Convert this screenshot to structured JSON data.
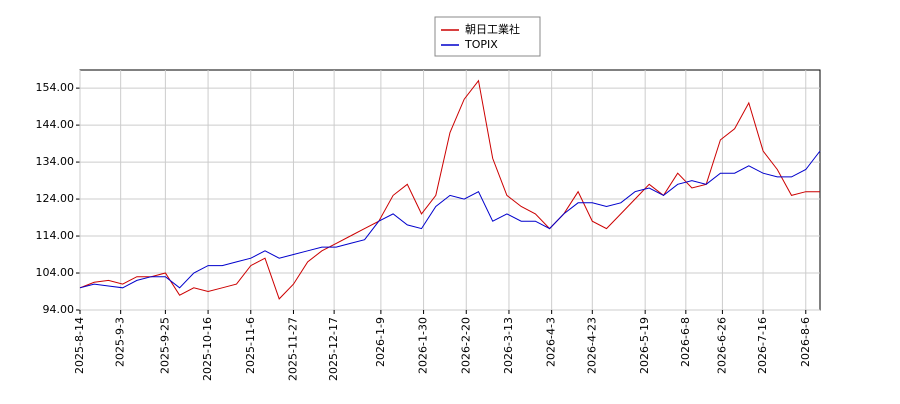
{
  "chart_data": {
    "type": "line",
    "x": [
      "2025-08-14",
      "2025-08-21",
      "2025-08-28",
      "2025-09-04",
      "2025-09-11",
      "2025-09-18",
      "2025-09-25",
      "2025-10-02",
      "2025-10-09",
      "2025-10-16",
      "2025-10-23",
      "2025-10-30",
      "2025-11-06",
      "2025-11-13",
      "2025-11-20",
      "2025-11-27",
      "2025-12-04",
      "2025-12-11",
      "2025-12-18",
      "2025-12-25",
      "2026-01-01",
      "2026-01-08",
      "2026-01-15",
      "2026-01-22",
      "2026-01-29",
      "2026-02-05",
      "2026-02-12",
      "2026-02-19",
      "2026-02-26",
      "2026-03-05",
      "2026-03-12",
      "2026-03-19",
      "2026-03-26",
      "2026-04-02",
      "2026-04-09",
      "2026-04-16",
      "2026-04-23",
      "2026-04-30",
      "2026-05-07",
      "2026-05-14",
      "2026-05-21",
      "2026-05-28",
      "2026-06-04",
      "2026-06-11",
      "2026-06-18",
      "2026-06-25",
      "2026-07-02",
      "2026-07-09",
      "2026-07-16",
      "2026-07-23",
      "2026-07-30",
      "2026-08-06",
      "2026-08-13"
    ],
    "series": [
      {
        "name": "朝日工業社",
        "color": "#cc0000",
        "values": [
          100,
          101.5,
          102,
          101,
          103,
          103,
          104,
          98,
          100,
          99,
          100,
          101,
          106,
          108,
          97,
          101,
          107,
          110,
          112,
          114,
          116,
          118,
          125,
          128,
          120,
          125,
          142,
          151,
          156,
          135,
          125,
          122,
          120,
          116,
          120,
          126,
          118,
          116,
          120,
          124,
          128,
          125,
          131,
          127,
          128,
          140,
          143,
          150,
          137,
          132,
          125,
          126,
          126
        ]
      },
      {
        "name": "TOPIX",
        "color": "#0000cc",
        "values": [
          100,
          101,
          100.5,
          100,
          102,
          103,
          103,
          100,
          104,
          106,
          106,
          107,
          108,
          110,
          108,
          109,
          110,
          111,
          111,
          112,
          113,
          118,
          120,
          117,
          116,
          122,
          125,
          124,
          126,
          118,
          120,
          118,
          118,
          116,
          120,
          123,
          123,
          122,
          123,
          126,
          127,
          125,
          128,
          129,
          128,
          131,
          131,
          133,
          131,
          130,
          130,
          132,
          137
        ]
      }
    ],
    "xlim": [
      "2025-08-14",
      "2026-08-13"
    ],
    "xticks": [
      "2025-8-14",
      "2025-9-3",
      "2025-9-25",
      "2025-10-16",
      "2025-11-6",
      "2025-11-27",
      "2025-12-17",
      "2026-1-9",
      "2026-1-30",
      "2026-2-20",
      "2026-3-13",
      "2026-4-3",
      "2026-4-23",
      "2026-5-19",
      "2026-6-8",
      "2026-6-26",
      "2026-7-16",
      "2026-8-6"
    ],
    "ylim": [
      94,
      158.9
    ],
    "yticks": [
      {
        "value": 94,
        "label": "94.00"
      },
      {
        "value": 104,
        "label": "104.00"
      },
      {
        "value": 114,
        "label": "114.00"
      },
      {
        "value": 124,
        "label": "124.00"
      },
      {
        "value": 134,
        "label": "134.00"
      },
      {
        "value": 144,
        "label": "144.00"
      },
      {
        "value": 154,
        "label": "154.00"
      }
    ],
    "grid": true
  }
}
